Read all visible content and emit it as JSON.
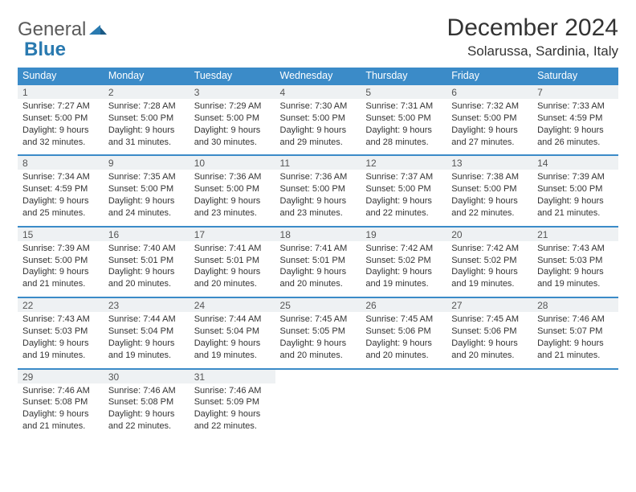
{
  "logo": {
    "text1": "General",
    "text2": "Blue"
  },
  "title": "December 2024",
  "location": "Solarussa, Sardinia, Italy",
  "colors": {
    "header_bg": "#3b8bc8",
    "header_text": "#ffffff",
    "daynum_bg": "#eef1f3",
    "row_border": "#3b8bc8",
    "page_bg": "#ffffff",
    "text": "#333333",
    "logo_gray": "#5a5a5a",
    "logo_blue": "#2a7ab0"
  },
  "weekdays": [
    "Sunday",
    "Monday",
    "Tuesday",
    "Wednesday",
    "Thursday",
    "Friday",
    "Saturday"
  ],
  "weeks": [
    [
      {
        "n": "1",
        "sunrise": "Sunrise: 7:27 AM",
        "sunset": "Sunset: 5:00 PM",
        "day1": "Daylight: 9 hours",
        "day2": "and 32 minutes."
      },
      {
        "n": "2",
        "sunrise": "Sunrise: 7:28 AM",
        "sunset": "Sunset: 5:00 PM",
        "day1": "Daylight: 9 hours",
        "day2": "and 31 minutes."
      },
      {
        "n": "3",
        "sunrise": "Sunrise: 7:29 AM",
        "sunset": "Sunset: 5:00 PM",
        "day1": "Daylight: 9 hours",
        "day2": "and 30 minutes."
      },
      {
        "n": "4",
        "sunrise": "Sunrise: 7:30 AM",
        "sunset": "Sunset: 5:00 PM",
        "day1": "Daylight: 9 hours",
        "day2": "and 29 minutes."
      },
      {
        "n": "5",
        "sunrise": "Sunrise: 7:31 AM",
        "sunset": "Sunset: 5:00 PM",
        "day1": "Daylight: 9 hours",
        "day2": "and 28 minutes."
      },
      {
        "n": "6",
        "sunrise": "Sunrise: 7:32 AM",
        "sunset": "Sunset: 5:00 PM",
        "day1": "Daylight: 9 hours",
        "day2": "and 27 minutes."
      },
      {
        "n": "7",
        "sunrise": "Sunrise: 7:33 AM",
        "sunset": "Sunset: 4:59 PM",
        "day1": "Daylight: 9 hours",
        "day2": "and 26 minutes."
      }
    ],
    [
      {
        "n": "8",
        "sunrise": "Sunrise: 7:34 AM",
        "sunset": "Sunset: 4:59 PM",
        "day1": "Daylight: 9 hours",
        "day2": "and 25 minutes."
      },
      {
        "n": "9",
        "sunrise": "Sunrise: 7:35 AM",
        "sunset": "Sunset: 5:00 PM",
        "day1": "Daylight: 9 hours",
        "day2": "and 24 minutes."
      },
      {
        "n": "10",
        "sunrise": "Sunrise: 7:36 AM",
        "sunset": "Sunset: 5:00 PM",
        "day1": "Daylight: 9 hours",
        "day2": "and 23 minutes."
      },
      {
        "n": "11",
        "sunrise": "Sunrise: 7:36 AM",
        "sunset": "Sunset: 5:00 PM",
        "day1": "Daylight: 9 hours",
        "day2": "and 23 minutes."
      },
      {
        "n": "12",
        "sunrise": "Sunrise: 7:37 AM",
        "sunset": "Sunset: 5:00 PM",
        "day1": "Daylight: 9 hours",
        "day2": "and 22 minutes."
      },
      {
        "n": "13",
        "sunrise": "Sunrise: 7:38 AM",
        "sunset": "Sunset: 5:00 PM",
        "day1": "Daylight: 9 hours",
        "day2": "and 22 minutes."
      },
      {
        "n": "14",
        "sunrise": "Sunrise: 7:39 AM",
        "sunset": "Sunset: 5:00 PM",
        "day1": "Daylight: 9 hours",
        "day2": "and 21 minutes."
      }
    ],
    [
      {
        "n": "15",
        "sunrise": "Sunrise: 7:39 AM",
        "sunset": "Sunset: 5:00 PM",
        "day1": "Daylight: 9 hours",
        "day2": "and 21 minutes."
      },
      {
        "n": "16",
        "sunrise": "Sunrise: 7:40 AM",
        "sunset": "Sunset: 5:01 PM",
        "day1": "Daylight: 9 hours",
        "day2": "and 20 minutes."
      },
      {
        "n": "17",
        "sunrise": "Sunrise: 7:41 AM",
        "sunset": "Sunset: 5:01 PM",
        "day1": "Daylight: 9 hours",
        "day2": "and 20 minutes."
      },
      {
        "n": "18",
        "sunrise": "Sunrise: 7:41 AM",
        "sunset": "Sunset: 5:01 PM",
        "day1": "Daylight: 9 hours",
        "day2": "and 20 minutes."
      },
      {
        "n": "19",
        "sunrise": "Sunrise: 7:42 AM",
        "sunset": "Sunset: 5:02 PM",
        "day1": "Daylight: 9 hours",
        "day2": "and 19 minutes."
      },
      {
        "n": "20",
        "sunrise": "Sunrise: 7:42 AM",
        "sunset": "Sunset: 5:02 PM",
        "day1": "Daylight: 9 hours",
        "day2": "and 19 minutes."
      },
      {
        "n": "21",
        "sunrise": "Sunrise: 7:43 AM",
        "sunset": "Sunset: 5:03 PM",
        "day1": "Daylight: 9 hours",
        "day2": "and 19 minutes."
      }
    ],
    [
      {
        "n": "22",
        "sunrise": "Sunrise: 7:43 AM",
        "sunset": "Sunset: 5:03 PM",
        "day1": "Daylight: 9 hours",
        "day2": "and 19 minutes."
      },
      {
        "n": "23",
        "sunrise": "Sunrise: 7:44 AM",
        "sunset": "Sunset: 5:04 PM",
        "day1": "Daylight: 9 hours",
        "day2": "and 19 minutes."
      },
      {
        "n": "24",
        "sunrise": "Sunrise: 7:44 AM",
        "sunset": "Sunset: 5:04 PM",
        "day1": "Daylight: 9 hours",
        "day2": "and 19 minutes."
      },
      {
        "n": "25",
        "sunrise": "Sunrise: 7:45 AM",
        "sunset": "Sunset: 5:05 PM",
        "day1": "Daylight: 9 hours",
        "day2": "and 20 minutes."
      },
      {
        "n": "26",
        "sunrise": "Sunrise: 7:45 AM",
        "sunset": "Sunset: 5:06 PM",
        "day1": "Daylight: 9 hours",
        "day2": "and 20 minutes."
      },
      {
        "n": "27",
        "sunrise": "Sunrise: 7:45 AM",
        "sunset": "Sunset: 5:06 PM",
        "day1": "Daylight: 9 hours",
        "day2": "and 20 minutes."
      },
      {
        "n": "28",
        "sunrise": "Sunrise: 7:46 AM",
        "sunset": "Sunset: 5:07 PM",
        "day1": "Daylight: 9 hours",
        "day2": "and 21 minutes."
      }
    ],
    [
      {
        "n": "29",
        "sunrise": "Sunrise: 7:46 AM",
        "sunset": "Sunset: 5:08 PM",
        "day1": "Daylight: 9 hours",
        "day2": "and 21 minutes."
      },
      {
        "n": "30",
        "sunrise": "Sunrise: 7:46 AM",
        "sunset": "Sunset: 5:08 PM",
        "day1": "Daylight: 9 hours",
        "day2": "and 22 minutes."
      },
      {
        "n": "31",
        "sunrise": "Sunrise: 7:46 AM",
        "sunset": "Sunset: 5:09 PM",
        "day1": "Daylight: 9 hours",
        "day2": "and 22 minutes."
      },
      null,
      null,
      null,
      null
    ]
  ]
}
